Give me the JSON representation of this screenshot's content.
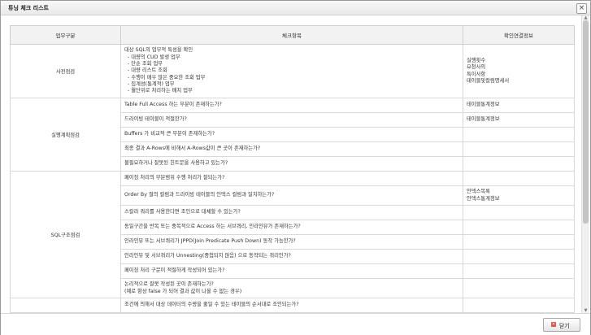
{
  "window": {
    "title": "튜닝 체크 리스트"
  },
  "table": {
    "headers": [
      "업무구분",
      "체크항목",
      "확인연결정보"
    ],
    "groups": [
      {
        "category": "사전점검",
        "rows": [
          {
            "item_lines": [
              "대상 SQL의 업무적 특성을 확인",
              "  - 대량의 CUD 발생 업무",
              "  - 단순 조회 업무",
              "  - 대량 리스트 조회",
              "  - 수행이 매우 많은 중요한 조회 업무",
              "  - 집계성(통계적) 업무",
              "  - 월단위로 처리하는 배치 업무"
            ],
            "info_lines": [
              "실행횟수",
              "요청사의",
              "특이사항",
              "테이블및컬럼명세서"
            ]
          }
        ]
      },
      {
        "category": "실행계획점검",
        "rows": [
          {
            "item_lines": [
              "Table Full Access 하는 부분이 존재하는가?"
            ],
            "info_lines": [
              "테이블통계정보"
            ]
          },
          {
            "item_lines": [
              "드라이빙 테이블이 적절한가?"
            ],
            "info_lines": [
              "테이블통계정보"
            ]
          },
          {
            "item_lines": [
              "Buffers 가 비교적 큰 부분이 존재하는가?"
            ],
            "info_lines": []
          },
          {
            "item_lines": [
              "최종 결과 A-Rows에 비해서 A-Rows값이 큰 곳이 존재하는가?"
            ],
            "info_lines": []
          },
          {
            "item_lines": [
              "불필요하거나 잘못된 힌트문을 사용하고 있는가?"
            ],
            "info_lines": []
          }
        ]
      },
      {
        "category": "SQL구조점검",
        "rows": [
          {
            "item_lines": [
              "페이징 처리의 부분범위 수행 처리가 잘되는가?"
            ],
            "info_lines": []
          },
          {
            "item_lines": [
              "Order By 절의 컬럼과 드라이빙 테이블의 인덱스 컬럼과 일치하는가?"
            ],
            "info_lines": [
              "인덱스목록",
              "인덱스통계정보"
            ]
          },
          {
            "item_lines": [
              "스칼라 쿼리를 사용한다면 조인으로 대체할 수 있는가?"
            ],
            "info_lines": []
          },
          {
            "item_lines": [
              "동일구간을 반복 또는 중복적으로 Access 하는 서브쿼리, 인라인뷰가 존재하는가?"
            ],
            "info_lines": []
          },
          {
            "item_lines": [
              "인라인뷰 또는 서브쿼리가 JPPD(Join Predicate Push Down) 동작 가능한가?"
            ],
            "info_lines": []
          },
          {
            "item_lines": [
              "인라인뷰 및 서브쿼리가 Unnesting(중첩되지 않음) 으로 동작되는 쿼리인가?"
            ],
            "info_lines": []
          },
          {
            "item_lines": [
              "페이징 처리 구문이 적절하게 작성되어 있는가?"
            ],
            "info_lines": []
          },
          {
            "item_lines": [
              "논리적으로 잘못 작성된 곳이 존재하는가?",
              "(예로 항상 false 가 되어 결과 값이 나올 수 없는 경우)"
            ],
            "info_lines": []
          }
        ]
      },
      {
        "category": "",
        "rows": [
          {
            "item_lines": [
              "조건에 의해서 대상 데이터의 수량을 줄일 수 있는 테이블의 순서대로 조인되는가?"
            ],
            "info_lines": []
          }
        ]
      }
    ]
  },
  "buttons": {
    "close_label": "닫기"
  },
  "icons": {
    "close_window": "close-x-icon",
    "close_button": "close-icon",
    "scroll_up": "triangle-up-icon",
    "scroll_down": "triangle-down-icon"
  }
}
